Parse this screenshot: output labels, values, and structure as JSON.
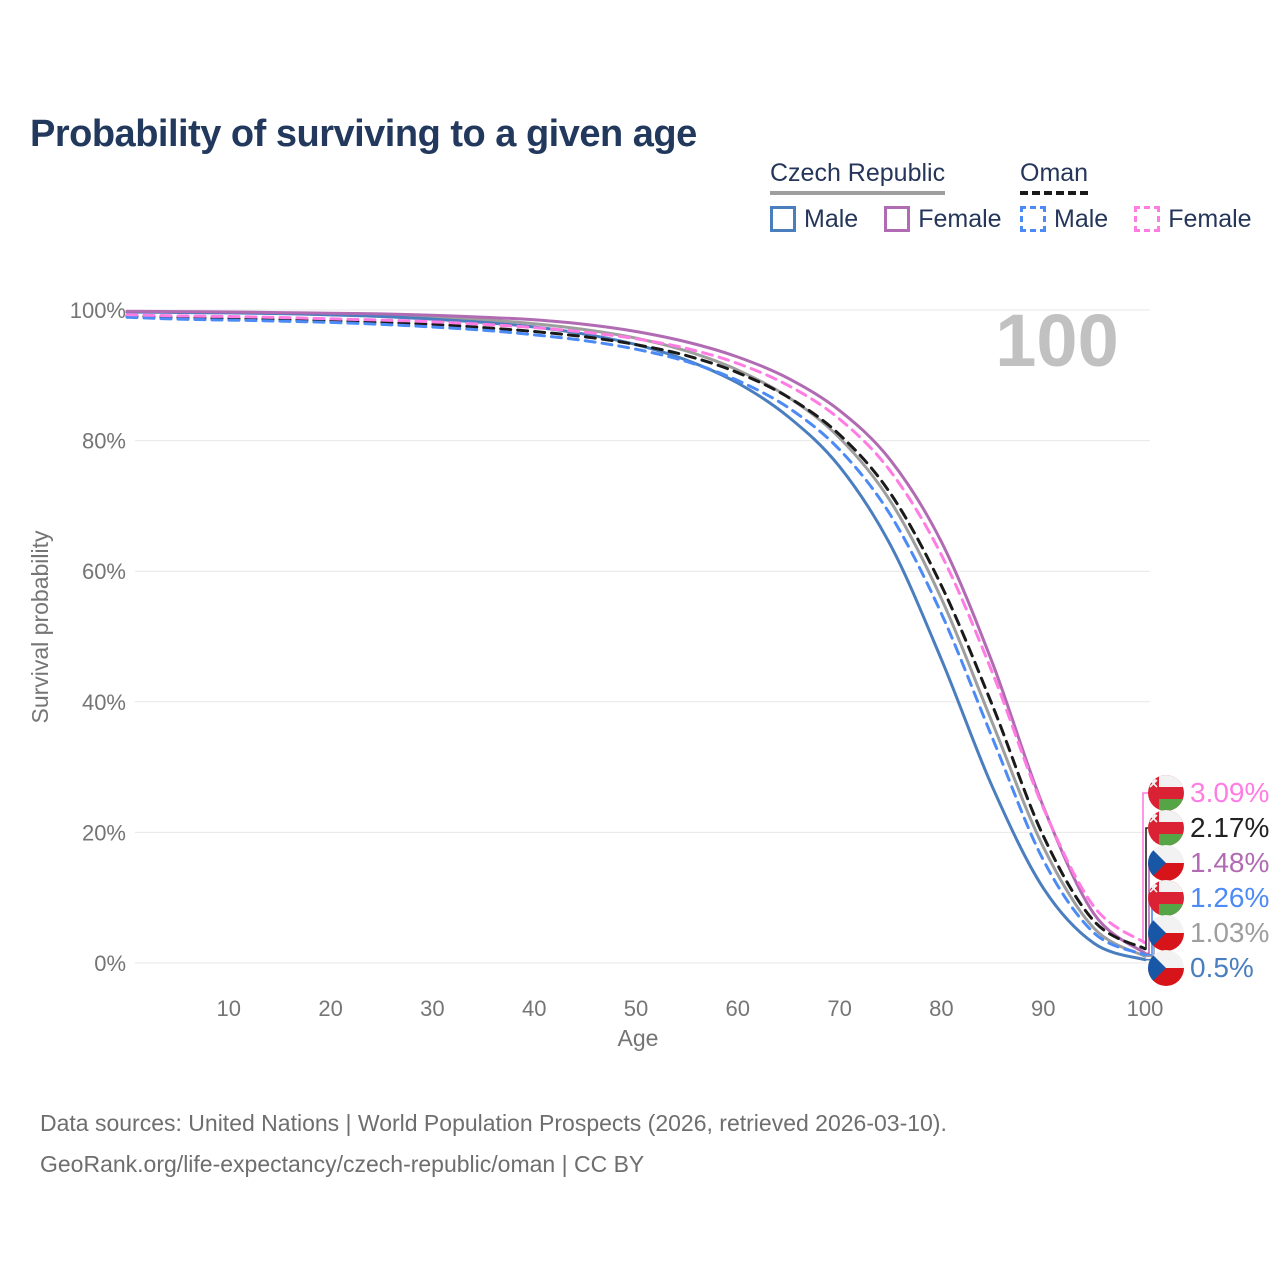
{
  "title": "Probability of surviving to a given age",
  "legend": {
    "groups": [
      {
        "label": "Czech Republic",
        "line_style": "solid",
        "underline_color": "#9e9e9e",
        "items": [
          {
            "label": "Male",
            "color": "#4a7ebe",
            "dashed": false
          },
          {
            "label": "Female",
            "color": "#b16bb3",
            "dashed": false
          }
        ]
      },
      {
        "label": "Oman",
        "line_style": "dashed",
        "underline_color": "#1a1a1a",
        "items": [
          {
            "label": "Male",
            "color": "#4c8bf5",
            "dashed": true
          },
          {
            "label": "Female",
            "color": "#ff7ce3",
            "dashed": true
          }
        ]
      }
    ]
  },
  "age_cursor": "100",
  "chart_data": {
    "type": "line",
    "title": "Probability of surviving to a given age",
    "xlabel": "Age",
    "ylabel": "Survival probability",
    "xlim": [
      0,
      100
    ],
    "ylim": [
      0,
      100
    ],
    "grid": "horizontal",
    "legend_position": "top-right",
    "x": [
      0,
      5,
      10,
      15,
      20,
      25,
      30,
      35,
      40,
      45,
      50,
      55,
      60,
      65,
      70,
      75,
      80,
      85,
      90,
      95,
      100
    ],
    "xticks": [
      10,
      20,
      30,
      40,
      50,
      60,
      70,
      80,
      90,
      100
    ],
    "ytick_values": [
      0,
      20,
      40,
      60,
      80,
      100
    ],
    "ytick_labels": [
      "0%",
      "20%",
      "40%",
      "60%",
      "80%",
      "100%"
    ],
    "series": [
      {
        "name": "Czech Republic",
        "color": "#9e9e9e",
        "dashed": false,
        "values": [
          99.75,
          99.68,
          99.62,
          99.52,
          99.38,
          99.2,
          98.9,
          98.5,
          97.9,
          97.0,
          95.7,
          93.7,
          90.8,
          86.6,
          80.4,
          70.7,
          55.8,
          36.8,
          17.8,
          5.3,
          1.03
        ]
      },
      {
        "name": "Czech Republic - Male",
        "color": "#4a7ebe",
        "dashed": false,
        "values": [
          99.7,
          99.62,
          99.55,
          99.45,
          99.25,
          99.0,
          98.6,
          98.1,
          97.4,
          96.3,
          94.7,
          92.3,
          88.8,
          83.6,
          76.0,
          64.0,
          46.5,
          27.0,
          11.5,
          3.0,
          0.5
        ]
      },
      {
        "name": "Czech Republic - Female",
        "color": "#b16bb3",
        "dashed": false,
        "values": [
          99.8,
          99.75,
          99.7,
          99.6,
          99.5,
          99.4,
          99.2,
          98.9,
          98.5,
          97.8,
          96.7,
          95.1,
          92.8,
          89.5,
          84.6,
          77.0,
          64.5,
          46.0,
          24.0,
          7.5,
          1.48
        ]
      },
      {
        "name": "Oman",
        "color": "#1a1a1a",
        "dashed": true,
        "values": [
          99.1,
          98.85,
          98.7,
          98.55,
          98.35,
          98.1,
          97.8,
          97.3,
          96.7,
          95.9,
          94.7,
          93.0,
          90.4,
          86.6,
          80.9,
          71.9,
          57.8,
          39.5,
          19.5,
          6.4,
          2.17
        ]
      },
      {
        "name": "Oman - Male",
        "color": "#4c8bf5",
        "dashed": true,
        "values": [
          98.9,
          98.6,
          98.45,
          98.3,
          98.1,
          97.8,
          97.4,
          96.9,
          96.2,
          95.3,
          94.0,
          92.1,
          89.2,
          85.0,
          78.6,
          68.6,
          53.5,
          34.5,
          15.8,
          4.6,
          1.26
        ]
      },
      {
        "name": "Oman - Female",
        "color": "#ff7ce3",
        "dashed": true,
        "values": [
          99.3,
          99.1,
          99.0,
          98.85,
          98.65,
          98.45,
          98.2,
          97.8,
          97.3,
          96.6,
          95.6,
          94.1,
          91.8,
          88.4,
          83.3,
          75.3,
          62.5,
          44.5,
          23.8,
          8.6,
          3.09
        ]
      }
    ],
    "end_labels": [
      {
        "text": "3.09%",
        "value": 3.09,
        "color": "#ff7ce3",
        "flag": "oman",
        "series": "Oman - Female"
      },
      {
        "text": "2.17%",
        "value": 2.17,
        "color": "#222222",
        "flag": "oman",
        "series": "Oman"
      },
      {
        "text": "1.48%",
        "value": 1.48,
        "color": "#b16bb3",
        "flag": "czech",
        "series": "Czech Republic - Female"
      },
      {
        "text": "1.26%",
        "value": 1.26,
        "color": "#4c8bf5",
        "flag": "oman",
        "series": "Oman - Male"
      },
      {
        "text": "1.03%",
        "value": 1.03,
        "color": "#9e9e9e",
        "flag": "czech",
        "series": "Czech Republic"
      },
      {
        "text": "0.5%",
        "value": 0.5,
        "color": "#4a7ebe",
        "flag": "czech",
        "series": "Czech Republic - Male"
      }
    ],
    "flag_colors": {
      "czech": {
        "white": "#f2f2f2",
        "red": "#d7141a",
        "blue": "#1757a6"
      },
      "oman": {
        "white": "#f2f2f2",
        "red": "#db2234",
        "green": "#55a546"
      }
    },
    "colors": {
      "grid": "#e7e7e7",
      "tick_text": "#757575",
      "watermark": "#c1c1c1"
    }
  },
  "footer": {
    "line1": "Data sources: United Nations | World Population Prospects (2026, retrieved 2026-03-10).",
    "line2": "GeoRank.org/life-expectancy/czech-republic/oman | CC BY"
  }
}
